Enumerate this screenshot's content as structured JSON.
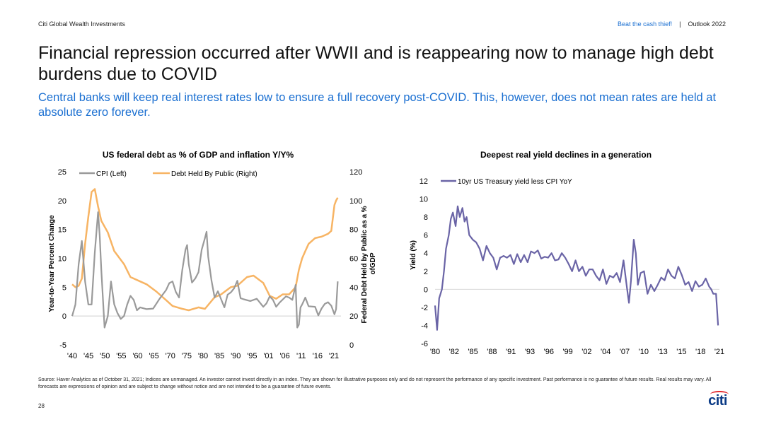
{
  "header": {
    "brand": "Citi Global Wealth Investments",
    "tagline": "Beat the cash thief!",
    "separator": "|",
    "outlook": "Outlook 2022"
  },
  "title": "Financial repression occurred after WWII and is reappearing now to manage high debt burdens due to COVID",
  "subtitle": "Central banks will keep real interest rates low to ensure a full recovery post-COVID. This, however, does not mean rates are held at absolute zero forever.",
  "colors": {
    "accent_blue": "#1a6fd1",
    "cpi": "#9a9a9a",
    "debt": "#f7b464",
    "yield": "#6a64a6",
    "logo_blue": "#0a3a86",
    "logo_red": "#e3262b"
  },
  "chart_data": [
    {
      "type": "line",
      "title": "US federal debt as % of GDP and inflation Y/Y%",
      "ylabel_left": "Year-to-Year Percent Change",
      "ylabel_right": "Federal Debt Held by Public as a % ofGDP",
      "ylim_left": [
        -5,
        25
      ],
      "ylim_right": [
        0,
        120
      ],
      "yticks_left": [
        "-5",
        "0",
        "5",
        "10",
        "15",
        "20",
        "25"
      ],
      "yticks_right": [
        "0",
        "20",
        "40",
        "60",
        "80",
        "100",
        "120"
      ],
      "xlim": [
        1939,
        2022
      ],
      "xticks": [
        "'40",
        "'45",
        "'50",
        "'55",
        "'60",
        "'65",
        "'70",
        "'75",
        "'80",
        "'85",
        "'90",
        "'95",
        "'01",
        "'06",
        "'11",
        "'16",
        "'21"
      ],
      "legend_position": "top",
      "series": [
        {
          "name": "CPI (Left)",
          "axis": "left",
          "x": [
            1939,
            1940,
            1941,
            1942,
            1943,
            1944,
            1945,
            1946,
            1947,
            1947.5,
            1948,
            1949,
            1950,
            1951,
            1952,
            1953,
            1954,
            1955,
            1956,
            1957,
            1958,
            1959,
            1960,
            1962,
            1964,
            1966,
            1968,
            1969,
            1970,
            1971,
            1972,
            1973,
            1974,
            1974.5,
            1975,
            1976,
            1977,
            1978,
            1979,
            1980,
            1980.5,
            1981,
            1982,
            1983,
            1984,
            1986,
            1987,
            1988,
            1989,
            1990,
            1991,
            1992,
            1994,
            1996,
            1998,
            1999,
            2000,
            2001,
            2002,
            2003,
            2005,
            2006,
            2007,
            2008,
            2008.5,
            2009,
            2009.5,
            2010,
            2011,
            2012,
            2014,
            2015,
            2016,
            2017,
            2018,
            2019,
            2020,
            2020.5,
            2021
          ],
          "values": [
            0,
            2,
            9,
            13,
            6,
            2,
            2,
            11,
            18,
            14,
            8,
            -2,
            0,
            6,
            2,
            0.5,
            -0.5,
            0,
            2,
            3.5,
            2.8,
            1,
            1.5,
            1.2,
            1.3,
            3,
            4.5,
            5.7,
            6,
            4.2,
            3.2,
            8,
            11.5,
            12.3,
            9,
            5.8,
            6.5,
            7.6,
            11.5,
            13.5,
            14.6,
            10.3,
            6.2,
            3.2,
            4.3,
            1.5,
            3.7,
            4.1,
            4.8,
            6.1,
            3.1,
            2.9,
            2.6,
            3,
            1.6,
            2.2,
            3.4,
            2.8,
            1.6,
            2.3,
            3.4,
            3.2,
            2.8,
            5.4,
            -2,
            -1.5,
            1.5,
            2,
            3.2,
            1.7,
            1.6,
            0.1,
            1.3,
            2.1,
            2.4,
            1.8,
            0.3,
            1.2,
            6
          ]
        },
        {
          "name": "Debt Held By Public (Right)",
          "axis": "right",
          "x": [
            1939,
            1940,
            1941,
            1942,
            1943,
            1944,
            1945,
            1946,
            1947,
            1948,
            1950,
            1952,
            1955,
            1957,
            1960,
            1962,
            1965,
            1968,
            1970,
            1973,
            1975,
            1978,
            1980,
            1983,
            1985,
            1988,
            1990,
            1993,
            1995,
            1998,
            2000,
            2002,
            2004,
            2006,
            2008,
            2009,
            2010,
            2011,
            2012,
            2014,
            2016,
            2018,
            2019,
            2020,
            2020.5,
            2021
          ],
          "values": [
            42,
            40,
            41,
            46,
            70,
            89,
            106,
            108,
            96,
            86,
            78,
            65,
            56,
            47,
            44,
            42,
            37,
            31,
            27,
            25,
            24,
            26,
            25,
            33,
            35,
            40,
            41,
            47,
            48,
            43,
            34,
            32,
            35,
            35,
            40,
            52,
            60,
            65,
            70,
            74,
            75,
            77,
            79,
            97,
            100,
            102
          ]
        }
      ]
    },
    {
      "type": "line",
      "title": "Deepest real yield declines in a generation",
      "ylabel": "Yield (%)",
      "ylim": [
        -6,
        12
      ],
      "yticks": [
        "-6",
        "-4",
        "-2",
        "0",
        "2",
        "4",
        "6",
        "8",
        "10",
        "12"
      ],
      "xlim": [
        1980,
        2021.5
      ],
      "xticks": [
        "'80",
        "'82",
        "'85",
        "'88",
        "'91",
        "'93",
        "'96",
        "'99",
        "'02",
        "'04",
        "'07",
        "'10",
        "'13",
        "'15",
        "'18",
        "'21"
      ],
      "legend_position": "top-left",
      "series": [
        {
          "name": "10yr US Treasury yield less CPI YoY",
          "x": [
            1980,
            1980.3,
            1980.6,
            1981,
            1981.3,
            1981.6,
            1982,
            1982.3,
            1982.6,
            1983,
            1983.3,
            1983.6,
            1984,
            1984.3,
            1984.6,
            1985,
            1985.5,
            1986,
            1986.5,
            1987,
            1987.5,
            1988,
            1988.5,
            1989,
            1989.5,
            1990,
            1990.5,
            1991,
            1991.5,
            1992,
            1992.5,
            1993,
            1993.5,
            1994,
            1994.5,
            1995,
            1995.5,
            1996,
            1996.5,
            1997,
            1997.5,
            1998,
            1998.5,
            1999,
            1999.5,
            2000,
            2000.5,
            2001,
            2001.5,
            2002,
            2002.5,
            2003,
            2003.5,
            2004,
            2004.5,
            2005,
            2005.5,
            2006,
            2006.5,
            2007,
            2007.5,
            2008,
            2008.3,
            2008.6,
            2009,
            2009.3,
            2009.6,
            2010,
            2010.5,
            2011,
            2011.5,
            2012,
            2012.5,
            2013,
            2013.5,
            2014,
            2014.5,
            2015,
            2015.5,
            2016,
            2016.5,
            2017,
            2017.5,
            2018,
            2018.5,
            2019,
            2019.5,
            2020,
            2020.3,
            2020.6,
            2021,
            2021.3
          ],
          "values": [
            -1.8,
            -4.5,
            -1,
            0,
            2,
            4.5,
            6,
            7.8,
            8.5,
            7,
            9.2,
            8,
            9,
            7.5,
            8,
            6,
            5.5,
            5.2,
            4.5,
            3.2,
            4.8,
            4,
            3.5,
            2.2,
            3.5,
            3.7,
            3.5,
            3.8,
            2.8,
            3.9,
            3,
            3.8,
            3,
            4.2,
            4,
            4.3,
            3.4,
            3.6,
            3.5,
            4,
            3.2,
            3.3,
            4,
            3.5,
            2.8,
            2,
            3.2,
            2,
            2.5,
            1.5,
            2.2,
            2.2,
            1.5,
            1,
            2.2,
            0.6,
            1.5,
            1.3,
            1.8,
            0.8,
            3.2,
            0.2,
            -1.5,
            1,
            5.5,
            4,
            0.5,
            1.8,
            2,
            -0.5,
            0.5,
            -0.2,
            0.5,
            1.3,
            1,
            2.2,
            1.5,
            1.2,
            2.5,
            1.6,
            0.5,
            0.8,
            -0.2,
            0.9,
            0.3,
            0.5,
            1.2,
            0.3,
            0,
            -0.5,
            -0.5,
            -4
          ]
        }
      ]
    }
  ],
  "footnote": "Source: Haver Analytics as of October 31, 2021; Indices are unmanaged. An investor cannot invest directly in an index. They are shown for illustrative purposes only and do not represent the performance of any specific investment. Past performance is no guarantee of future results. Real results may vary. All forecasts are expressions of opinion and are subject to change without notice and are not intended to be a guarantee of future events.",
  "page_number": "28",
  "logo_text": "citi"
}
